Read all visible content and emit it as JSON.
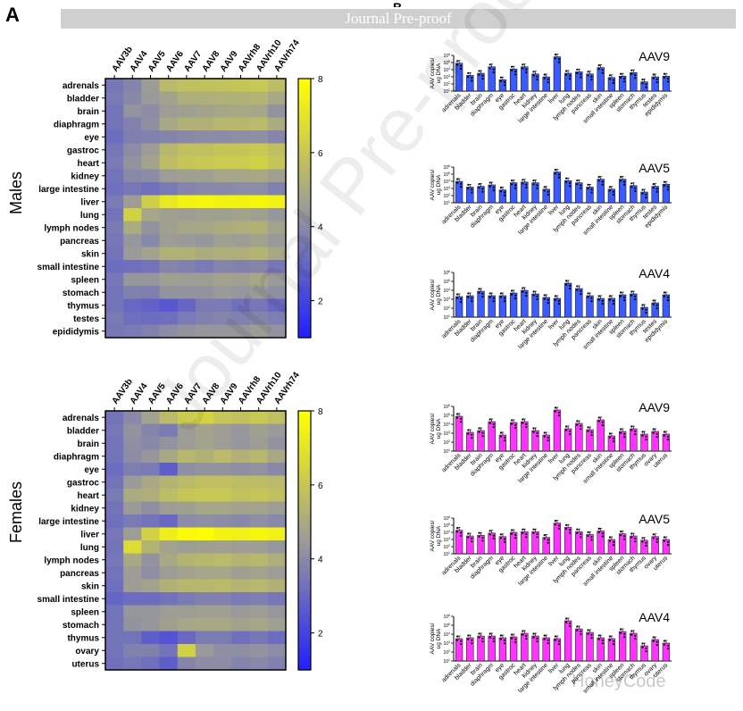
{
  "header": {
    "banner": "Journal Pre-proof",
    "panel_a": "A",
    "panel_b": "B"
  },
  "labels": {
    "males": "Males",
    "females": "Females"
  },
  "watermark": {
    "text": "Journal Pre-proof",
    "brand": "HoneyCode"
  },
  "colors": {
    "low": "#1e1eff",
    "mid": "#9a9a9a",
    "high": "#ffff00",
    "male_bar": "#3b5bff",
    "female_bar": "#ff33ff"
  },
  "chart_data": [
    {
      "type": "heatmap",
      "id": "male-heatmap",
      "title": "",
      "columns": [
        "AAV3b",
        "AAV4",
        "AAV5",
        "AAV6",
        "AAV7",
        "AAV8",
        "AAV9",
        "AAVrh8",
        "AAVrh10",
        "AAVrh74"
      ],
      "rows": [
        "adrenals",
        "bladder",
        "brain",
        "diaphragm",
        "eye",
        "gastroc",
        "heart",
        "kidney",
        "large intestine",
        "liver",
        "lung",
        "lymph nodes",
        "pancreas",
        "skin",
        "small intestine",
        "spleen",
        "stomach",
        "thymus",
        "testes",
        "epididymis"
      ],
      "values": [
        [
          3.5,
          3.9,
          4.6,
          5.6,
          5.8,
          5.9,
          5.9,
          6.0,
          6.1,
          5.7
        ],
        [
          3.6,
          4.0,
          4.5,
          4.8,
          5.2,
          5.2,
          5.3,
          5.3,
          5.4,
          5.0
        ],
        [
          3.4,
          4.3,
          4.1,
          4.6,
          4.7,
          4.8,
          4.9,
          5.0,
          4.9,
          4.3
        ],
        [
          3.4,
          3.8,
          4.2,
          5.0,
          5.3,
          5.3,
          5.5,
          5.5,
          5.6,
          5.1
        ],
        [
          3.2,
          3.7,
          3.8,
          3.9,
          4.0,
          4.1,
          4.1,
          4.2,
          4.2,
          3.9
        ],
        [
          3.5,
          4.1,
          4.6,
          5.5,
          5.8,
          5.8,
          6.0,
          6.0,
          6.1,
          5.8
        ],
        [
          3.6,
          4.3,
          4.8,
          5.7,
          6.0,
          6.1,
          6.2,
          6.2,
          6.4,
          6.0
        ],
        [
          3.4,
          4.0,
          4.1,
          4.6,
          4.7,
          4.7,
          4.9,
          4.9,
          5.0,
          4.7
        ],
        [
          3.3,
          3.5,
          3.3,
          3.6,
          3.9,
          4.0,
          4.0,
          4.1,
          4.1,
          3.8
        ],
        [
          3.6,
          4.6,
          6.3,
          7.2,
          7.6,
          7.7,
          7.6,
          7.6,
          7.7,
          7.5
        ],
        [
          3.4,
          6.4,
          4.9,
          4.7,
          4.6,
          4.7,
          4.7,
          4.8,
          4.7,
          4.4
        ],
        [
          3.6,
          5.1,
          4.3,
          4.7,
          4.9,
          4.9,
          5.1,
          5.2,
          5.3,
          4.8
        ],
        [
          3.5,
          4.4,
          4.0,
          4.6,
          4.5,
          4.4,
          4.7,
          4.6,
          4.8,
          4.5
        ],
        [
          3.4,
          4.5,
          4.8,
          5.3,
          5.3,
          5.1,
          5.2,
          5.2,
          5.4,
          5.0
        ],
        [
          3.2,
          3.3,
          3.4,
          3.9,
          3.8,
          3.6,
          3.9,
          3.8,
          3.9,
          3.5
        ],
        [
          3.5,
          4.4,
          4.4,
          4.7,
          4.6,
          4.6,
          4.8,
          4.7,
          4.9,
          4.5
        ],
        [
          3.4,
          3.8,
          3.7,
          4.3,
          4.3,
          4.3,
          4.5,
          4.4,
          4.5,
          4.2
        ],
        [
          3.4,
          3.1,
          2.9,
          2.6,
          3.0,
          3.6,
          3.6,
          3.3,
          3.5,
          3.1
        ],
        [
          3.6,
          3.3,
          3.2,
          3.3,
          3.6,
          3.8,
          3.9,
          3.8,
          3.9,
          3.7
        ],
        [
          3.5,
          3.6,
          3.8,
          4.1,
          4.3,
          4.4,
          4.4,
          4.4,
          4.6,
          4.3
        ]
      ],
      "colorbar": {
        "min": 1,
        "max": 8,
        "ticks": [
          "2",
          "4",
          "6",
          "8"
        ]
      }
    },
    {
      "type": "heatmap",
      "id": "female-heatmap",
      "title": "",
      "columns": [
        "AAV3b",
        "AAV4",
        "AAV5",
        "AAV6",
        "AAV7",
        "AAV8",
        "AAV9",
        "AAVrh8",
        "AAVrh10",
        "AAVrh74"
      ],
      "rows": [
        "adrenals",
        "bladder",
        "brain",
        "diaphragm",
        "eye",
        "gastroc",
        "heart",
        "kidney",
        "large intestine",
        "liver",
        "lung",
        "lymph nodes",
        "pancreas",
        "skin",
        "small intestine",
        "spleen",
        "stomach",
        "thymus",
        "ovary",
        "uterus"
      ],
      "values": [
        [
          3.4,
          4.0,
          4.8,
          5.6,
          6.2,
          6.5,
          6.0,
          5.9,
          6.1,
          5.8
        ],
        [
          3.5,
          4.3,
          3.9,
          3.6,
          4.6,
          4.8,
          4.6,
          4.4,
          4.7,
          4.5
        ],
        [
          3.4,
          4.2,
          4.0,
          4.3,
          4.6,
          4.8,
          4.6,
          4.4,
          4.6,
          4.3
        ],
        [
          3.4,
          4.1,
          4.4,
          5.0,
          5.5,
          5.3,
          5.6,
          5.3,
          5.5,
          5.0
        ],
        [
          3.2,
          3.7,
          3.6,
          2.8,
          4.2,
          4.3,
          4.3,
          4.2,
          4.3,
          4.0
        ],
        [
          3.4,
          4.5,
          5.0,
          5.4,
          5.6,
          5.8,
          5.8,
          5.7,
          5.7,
          5.6
        ],
        [
          3.6,
          5.1,
          5.2,
          5.7,
          6.0,
          6.1,
          6.1,
          5.9,
          6.0,
          5.8
        ],
        [
          3.4,
          4.5,
          4.2,
          4.6,
          4.7,
          4.9,
          4.9,
          4.8,
          4.8,
          4.6
        ],
        [
          3.3,
          3.6,
          3.4,
          3.1,
          4.1,
          4.2,
          4.1,
          4.0,
          4.2,
          4.0
        ],
        [
          3.5,
          4.6,
          6.4,
          7.4,
          7.8,
          7.9,
          7.6,
          7.5,
          7.7,
          7.5
        ],
        [
          3.4,
          6.8,
          5.4,
          4.8,
          4.6,
          4.7,
          4.7,
          4.6,
          4.6,
          4.4
        ],
        [
          3.5,
          5.0,
          4.3,
          5.0,
          5.4,
          5.5,
          5.6,
          5.4,
          5.5,
          5.2
        ],
        [
          3.4,
          4.6,
          4.2,
          4.6,
          4.8,
          4.9,
          4.9,
          4.7,
          4.8,
          4.6
        ],
        [
          3.3,
          4.6,
          4.8,
          5.3,
          5.5,
          5.5,
          5.6,
          5.4,
          5.5,
          5.3
        ],
        [
          3.0,
          3.2,
          3.2,
          3.4,
          3.6,
          3.8,
          3.8,
          3.6,
          3.7,
          3.5
        ],
        [
          3.4,
          4.4,
          4.4,
          4.6,
          4.6,
          4.7,
          4.7,
          4.5,
          4.6,
          4.4
        ],
        [
          3.4,
          4.3,
          4.4,
          4.7,
          4.9,
          5.0,
          5.0,
          4.8,
          4.9,
          4.7
        ],
        [
          3.4,
          3.4,
          2.8,
          2.5,
          3.1,
          3.6,
          3.6,
          3.3,
          3.5,
          3.2
        ],
        [
          3.4,
          3.8,
          3.8,
          3.4,
          6.4,
          4.5,
          4.2,
          4.2,
          4.3,
          4.1
        ],
        [
          3.3,
          3.5,
          3.3,
          2.8,
          3.9,
          4.1,
          4.1,
          3.9,
          4.0,
          3.8
        ]
      ],
      "colorbar": {
        "min": 1,
        "max": 8,
        "ticks": [
          "2",
          "4",
          "6",
          "8"
        ]
      }
    },
    {
      "type": "bar",
      "id": "male-aav9",
      "title": "AAV9",
      "ylabel": "AAV copies/\nug DNA",
      "ylim_exp": [
        1,
        6
      ],
      "categories": [
        "adrenals",
        "bladder",
        "brain",
        "diaphragm",
        "eye",
        "gastroc",
        "heart",
        "kidney",
        "large intestine",
        "liver",
        "lung",
        "lymph nodes",
        "pancreas",
        "skin",
        "small intestine",
        "spleen",
        "stomach",
        "thymus",
        "testes",
        "epididymis"
      ],
      "values": [
        4.9,
        3.2,
        3.5,
        4.4,
        2.6,
        4.1,
        4.4,
        3.4,
        3.0,
        5.8,
        3.5,
        3.7,
        3.4,
        4.3,
        2.9,
        3.1,
        3.6,
        2.3,
        3.0,
        3.1
      ]
    },
    {
      "type": "bar",
      "id": "male-aav5",
      "title": "AAV5",
      "ylabel": "AAV copies/\nug DNA",
      "ylim_exp": [
        1,
        6
      ],
      "categories": [
        "adrenals",
        "bladder",
        "brain",
        "diaphragm",
        "eye",
        "gastroc",
        "heart",
        "kidney",
        "large intestine",
        "liver",
        "lung",
        "lymph nodes",
        "pancreas",
        "skin",
        "small intestine",
        "spleen",
        "stomach",
        "thymus",
        "testes",
        "epididymis"
      ],
      "values": [
        4.0,
        3.2,
        3.3,
        3.5,
        2.8,
        3.8,
        3.9,
        3.8,
        2.9,
        5.3,
        4.1,
        3.8,
        3.2,
        4.3,
        2.9,
        4.3,
        3.4,
        2.5,
        3.3,
        3.6
      ]
    },
    {
      "type": "bar",
      "id": "male-aav4",
      "title": "AAV4",
      "ylabel": "AAV copies/\nug DNA",
      "ylim_exp": [
        1,
        6
      ],
      "categories": [
        "adrenals",
        "bladder",
        "brain",
        "diaphragm",
        "eye",
        "gastroc",
        "heart",
        "kidney",
        "large intestine",
        "liver",
        "lung",
        "lymph nodes",
        "pancreas",
        "skin",
        "small intestine",
        "spleen",
        "stomach",
        "thymus",
        "testes",
        "epididymis"
      ],
      "values": [
        3.3,
        3.4,
        3.9,
        3.4,
        3.4,
        3.7,
        4.0,
        3.6,
        3.2,
        3.1,
        4.8,
        4.2,
        3.4,
        3.1,
        3.1,
        3.5,
        3.6,
        2.1,
        2.6,
        3.5
      ]
    },
    {
      "type": "bar",
      "id": "female-aav9",
      "title": "AAV9",
      "ylabel": "AAV copies/\nug DNA",
      "ylim_exp": [
        1,
        6
      ],
      "categories": [
        "adrenals",
        "bladder",
        "brain",
        "diaphragm",
        "eye",
        "gastroc",
        "heart",
        "kidney",
        "large intestine",
        "liver",
        "lung",
        "lymph nodes",
        "pancreas",
        "skin",
        "small intestine",
        "spleen",
        "stomach",
        "thymus",
        "ovary",
        "uterus"
      ],
      "values": [
        4.9,
        3.1,
        3.3,
        4.3,
        2.8,
        4.2,
        4.3,
        3.3,
        2.8,
        5.6,
        3.5,
        4.1,
        3.4,
        4.5,
        2.7,
        3.2,
        3.5,
        2.9,
        3.2,
        2.9
      ]
    },
    {
      "type": "bar",
      "id": "female-aav5",
      "title": "AAV5",
      "ylabel": "AAV copies/\nug DNA",
      "ylim_exp": [
        1,
        6
      ],
      "categories": [
        "adrenals",
        "bladder",
        "brain",
        "diaphragm",
        "eye",
        "gastroc",
        "heart",
        "kidney",
        "large intestine",
        "liver",
        "lung",
        "lymph nodes",
        "pancreas",
        "skin",
        "small intestine",
        "spleen",
        "stomach",
        "thymus",
        "ovary",
        "uterus"
      ],
      "values": [
        4.3,
        3.5,
        3.6,
        3.9,
        3.4,
        4.0,
        4.1,
        4.1,
        3.3,
        5.3,
        4.7,
        4.1,
        3.7,
        4.2,
        3.0,
        3.8,
        3.5,
        2.9,
        3.4,
        3.0
      ]
    },
    {
      "type": "bar",
      "id": "female-aav4",
      "title": "AAV4",
      "ylabel": "AAV copies/\nug DNA",
      "ylim_exp": [
        1,
        6
      ],
      "categories": [
        "adrenals",
        "bladder",
        "brain",
        "diaphragm",
        "eye",
        "gastroc",
        "heart",
        "kidney",
        "large intestine",
        "liver",
        "lung",
        "lymph nodes",
        "pancreas",
        "skin",
        "small intestine",
        "spleen",
        "stomach",
        "thymus",
        "ovary",
        "uterus"
      ],
      "values": [
        3.5,
        3.6,
        3.8,
        3.8,
        3.6,
        3.7,
        4.1,
        3.8,
        3.6,
        3.5,
        5.5,
        4.6,
        4.2,
        3.6,
        3.5,
        4.3,
        4.1,
        2.7,
        3.4,
        3.0
      ]
    }
  ]
}
